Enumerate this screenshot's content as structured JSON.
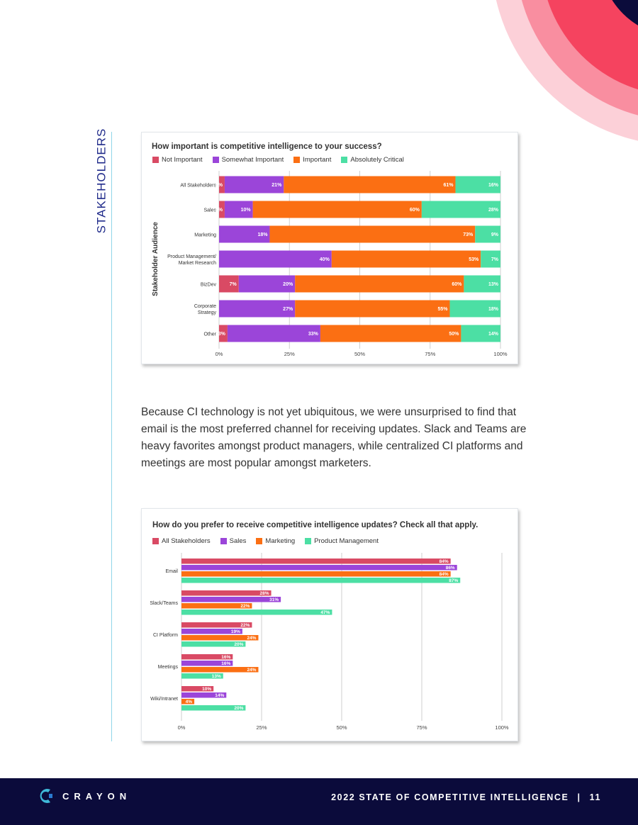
{
  "side_label": "STAKEHOLDERS",
  "colors": {
    "not_important": "#d94a64",
    "somewhat": "#9b45d9",
    "important": "#fb6f13",
    "critical": "#4cdfa4",
    "navy": "#0b0b3b",
    "pink": "#f5435f"
  },
  "chart1": {
    "title": "How important is competitive intelligence to your success?",
    "legend": [
      "Not Important",
      "Somewhat Important",
      "Important",
      "Absolutely Critical"
    ],
    "y_axis_title": "Stakeholder Audience",
    "x_ticks": [
      "0%",
      "25%",
      "50%",
      "75%",
      "100%"
    ]
  },
  "chart2": {
    "title": "How do you prefer to receive competitive intelligence updates? Check all that apply.",
    "legend": [
      "All Stakeholders",
      "Sales",
      "Marketing",
      "Product Management"
    ],
    "x_ticks": [
      "0%",
      "25%",
      "50%",
      "75%",
      "100%"
    ]
  },
  "chart_data": [
    {
      "type": "bar",
      "orientation": "horizontal",
      "stacked": true,
      "title": "How important is competitive intelligence to your success?",
      "ylabel": "Stakeholder Audience",
      "xlim": [
        0,
        100
      ],
      "legend_position": "top-left",
      "categories": [
        "All Stakeholders",
        "Sales",
        "Marketing",
        "Product Management/\nMarket Research",
        "BizDev",
        "Corporate\nStrategy",
        "Other"
      ],
      "series": [
        {
          "name": "Not Important",
          "color": "#d94a64",
          "values": [
            2,
            2,
            0,
            0,
            7,
            0,
            3
          ],
          "labels": [
            "2%",
            "2%",
            "",
            "",
            "7%",
            "",
            "3%"
          ]
        },
        {
          "name": "Somewhat Important",
          "color": "#9b45d9",
          "values": [
            21,
            10,
            18,
            40,
            20,
            27,
            33
          ],
          "labels": [
            "21%",
            "10%",
            "18%",
            "40%",
            "20%",
            "27%",
            "33%"
          ]
        },
        {
          "name": "Important",
          "color": "#fb6f13",
          "values": [
            61,
            60,
            73,
            53,
            60,
            55,
            50
          ],
          "labels": [
            "61%",
            "60%",
            "73%",
            "53%",
            "60%",
            "55%",
            "50%"
          ]
        },
        {
          "name": "Absolutely Critical",
          "color": "#4cdfa4",
          "values": [
            16,
            28,
            9,
            7,
            13,
            18,
            14
          ],
          "labels": [
            "16%",
            "28%",
            "9%",
            "7%",
            "13%",
            "18%",
            "14%"
          ]
        }
      ]
    },
    {
      "type": "bar",
      "orientation": "horizontal",
      "stacked": false,
      "title": "How do you prefer to receive competitive intelligence updates? Check all that apply.",
      "xlim": [
        0,
        100
      ],
      "legend_position": "top-left",
      "categories": [
        "Email",
        "Slack/Teams",
        "CI Platform",
        "Meetings",
        "Wiki/Intranet"
      ],
      "series": [
        {
          "name": "All Stakeholders",
          "color": "#d94a64",
          "values": [
            84,
            28,
            22,
            16,
            10
          ]
        },
        {
          "name": "Sales",
          "color": "#9b45d9",
          "values": [
            86,
            31,
            19,
            16,
            14
          ]
        },
        {
          "name": "Marketing",
          "color": "#fb6f13",
          "values": [
            84,
            22,
            24,
            24,
            4
          ]
        },
        {
          "name": "Product Management",
          "color": "#4cdfa4",
          "values": [
            87,
            47,
            20,
            13,
            20
          ]
        }
      ]
    }
  ],
  "paragraph": "Because CI technology is not yet ubiquitous, we were unsurprised to find that email is the most preferred channel for receiving updates. Slack and Teams are heavy favorites amongst product managers, while centralized CI platforms and meetings are most popular amongst marketers.",
  "footer": {
    "logo": "CRAYON",
    "title": "2022 STATE OF COMPETITIVE INTELLIGENCE",
    "separator": "|",
    "page_number": "11"
  }
}
